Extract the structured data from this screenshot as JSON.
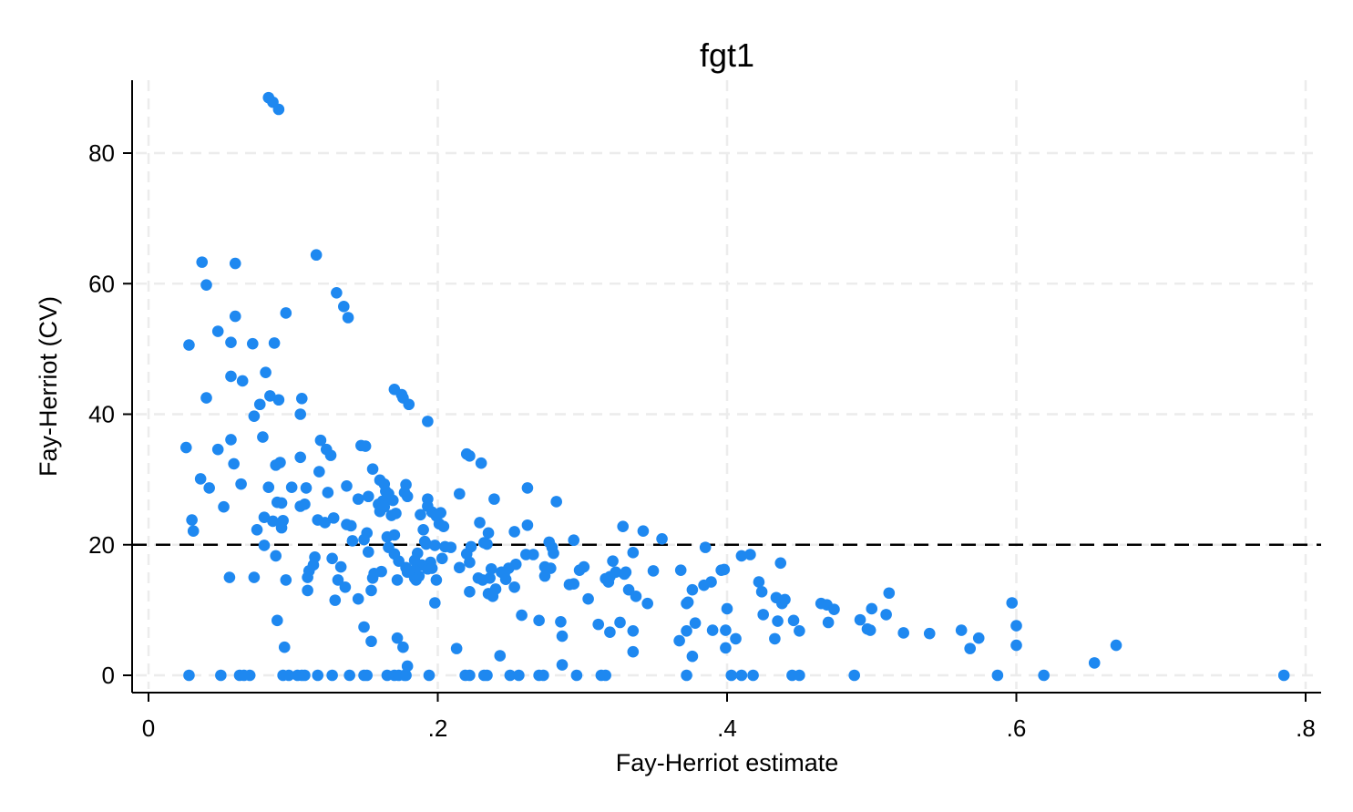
{
  "chart_data": {
    "type": "scatter",
    "title": "fgt1",
    "xlabel": "Fay-Herriot estimate",
    "ylabel": "Fay-Herriot (CV)",
    "xlim": [
      0,
      0.8
    ],
    "ylim": [
      0,
      90
    ],
    "x_ticks": [
      {
        "value": 0,
        "label": "0"
      },
      {
        "value": 0.2,
        "label": ".2"
      },
      {
        "value": 0.4,
        "label": ".4"
      },
      {
        "value": 0.6,
        "label": ".6"
      },
      {
        "value": 0.8,
        "label": ".8"
      }
    ],
    "y_ticks": [
      {
        "value": 0,
        "label": "0"
      },
      {
        "value": 20,
        "label": "20"
      },
      {
        "value": 40,
        "label": "40"
      },
      {
        "value": 60,
        "label": "60"
      },
      {
        "value": 80,
        "label": "80"
      }
    ],
    "grid": true,
    "reference_line": {
      "y": 20,
      "style": "dashed"
    },
    "colors": {
      "points": "#1e88f0",
      "grid": "#ececec",
      "reference": "#000000"
    },
    "points": [
      [
        0.028,
        0
      ],
      [
        0.05,
        0
      ],
      [
        0.063,
        0
      ],
      [
        0.066,
        0
      ],
      [
        0.07,
        0
      ],
      [
        0.093,
        0
      ],
      [
        0.097,
        0
      ],
      [
        0.103,
        0
      ],
      [
        0.106,
        0
      ],
      [
        0.108,
        0
      ],
      [
        0.117,
        0
      ],
      [
        0.127,
        0
      ],
      [
        0.139,
        0
      ],
      [
        0.149,
        0
      ],
      [
        0.151,
        0
      ],
      [
        0.165,
        0
      ],
      [
        0.17,
        0
      ],
      [
        0.173,
        0
      ],
      [
        0.177,
        0
      ],
      [
        0.178,
        0
      ],
      [
        0.194,
        0
      ],
      [
        0.219,
        0
      ],
      [
        0.222,
        0
      ],
      [
        0.232,
        0
      ],
      [
        0.234,
        0
      ],
      [
        0.25,
        0
      ],
      [
        0.256,
        0
      ],
      [
        0.27,
        0
      ],
      [
        0.273,
        0
      ],
      [
        0.296,
        0
      ],
      [
        0.313,
        0
      ],
      [
        0.316,
        0
      ],
      [
        0.372,
        0
      ],
      [
        0.403,
        0
      ],
      [
        0.41,
        0
      ],
      [
        0.418,
        0
      ],
      [
        0.445,
        0
      ],
      [
        0.45,
        0
      ],
      [
        0.488,
        0
      ],
      [
        0.587,
        0
      ],
      [
        0.619,
        0
      ],
      [
        0.785,
        0
      ],
      [
        0.083,
        88.5
      ],
      [
        0.086,
        87.8
      ],
      [
        0.09,
        86.7
      ],
      [
        0.116,
        64.4
      ],
      [
        0.037,
        63.3
      ],
      [
        0.06,
        63.1
      ],
      [
        0.04,
        59.8
      ],
      [
        0.13,
        58.6
      ],
      [
        0.135,
        56.5
      ],
      [
        0.138,
        54.8
      ],
      [
        0.095,
        55.5
      ],
      [
        0.06,
        55
      ],
      [
        0.048,
        52.7
      ],
      [
        0.028,
        50.6
      ],
      [
        0.057,
        51
      ],
      [
        0.072,
        50.8
      ],
      [
        0.087,
        50.9
      ],
      [
        0.081,
        46.4
      ],
      [
        0.057,
        45.8
      ],
      [
        0.065,
        45.1
      ],
      [
        0.17,
        43.8
      ],
      [
        0.175,
        43
      ],
      [
        0.176,
        42.5
      ],
      [
        0.04,
        42.5
      ],
      [
        0.084,
        42.8
      ],
      [
        0.09,
        42.2
      ],
      [
        0.106,
        42.4
      ],
      [
        0.18,
        41.5
      ],
      [
        0.077,
        41.5
      ],
      [
        0.073,
        39.7
      ],
      [
        0.105,
        40
      ],
      [
        0.193,
        38.9
      ],
      [
        0.079,
        36.5
      ],
      [
        0.057,
        36.1
      ],
      [
        0.119,
        36
      ],
      [
        0.026,
        34.9
      ],
      [
        0.048,
        34.6
      ],
      [
        0.147,
        35.2
      ],
      [
        0.15,
        35.1
      ],
      [
        0.123,
        34.6
      ],
      [
        0.105,
        33.4
      ],
      [
        0.126,
        33.7
      ],
      [
        0.22,
        33.9
      ],
      [
        0.222,
        33.6
      ],
      [
        0.059,
        32.4
      ],
      [
        0.091,
        32.6
      ],
      [
        0.088,
        32.2
      ],
      [
        0.23,
        32.5
      ],
      [
        0.118,
        31.2
      ],
      [
        0.155,
        31.6
      ],
      [
        0.036,
        30.1
      ],
      [
        0.064,
        29.3
      ],
      [
        0.16,
        29.9
      ],
      [
        0.163,
        29.3
      ],
      [
        0.042,
        28.7
      ],
      [
        0.083,
        28.8
      ],
      [
        0.099,
        28.8
      ],
      [
        0.109,
        28.7
      ],
      [
        0.137,
        29
      ],
      [
        0.178,
        29.2
      ],
      [
        0.262,
        28.7
      ],
      [
        0.124,
        28
      ],
      [
        0.164,
        28.2
      ],
      [
        0.166,
        27.8
      ],
      [
        0.177,
        28
      ],
      [
        0.179,
        27.4
      ],
      [
        0.215,
        27.8
      ],
      [
        0.145,
        27
      ],
      [
        0.152,
        27.4
      ],
      [
        0.162,
        26.7
      ],
      [
        0.169,
        26.8
      ],
      [
        0.193,
        27
      ],
      [
        0.239,
        27
      ],
      [
        0.282,
        26.6
      ],
      [
        0.089,
        26.5
      ],
      [
        0.092,
        26.4
      ],
      [
        0.105,
        25.9
      ],
      [
        0.108,
        26.2
      ],
      [
        0.159,
        26.2
      ],
      [
        0.163,
        25.8
      ],
      [
        0.193,
        25.9
      ],
      [
        0.052,
        25.8
      ],
      [
        0.16,
        25.1
      ],
      [
        0.171,
        24.8
      ],
      [
        0.188,
        24.6
      ],
      [
        0.196,
        25
      ],
      [
        0.202,
        24.9
      ],
      [
        0.03,
        23.8
      ],
      [
        0.08,
        24.2
      ],
      [
        0.086,
        23.6
      ],
      [
        0.093,
        23.7
      ],
      [
        0.117,
        23.8
      ],
      [
        0.122,
        23.4
      ],
      [
        0.128,
        24.1
      ],
      [
        0.137,
        23.1
      ],
      [
        0.14,
        22.9
      ],
      [
        0.168,
        24.5
      ],
      [
        0.199,
        24.4
      ],
      [
        0.201,
        23.2
      ],
      [
        0.229,
        23.4
      ],
      [
        0.262,
        23
      ],
      [
        0.328,
        22.8
      ],
      [
        0.031,
        22.1
      ],
      [
        0.075,
        22.3
      ],
      [
        0.092,
        22.6
      ],
      [
        0.151,
        21.8
      ],
      [
        0.19,
        22.3
      ],
      [
        0.204,
        22.8
      ],
      [
        0.235,
        21.8
      ],
      [
        0.253,
        22
      ],
      [
        0.342,
        22.1
      ],
      [
        0.149,
        20.8
      ],
      [
        0.165,
        21.2
      ],
      [
        0.17,
        21.5
      ],
      [
        0.191,
        20.5
      ],
      [
        0.232,
        20.3
      ],
      [
        0.277,
        20.4
      ],
      [
        0.294,
        20.7
      ],
      [
        0.355,
        20.9
      ],
      [
        0.385,
        19.6
      ],
      [
        0.08,
        19.9
      ],
      [
        0.141,
        20.6
      ],
      [
        0.166,
        19.6
      ],
      [
        0.192,
        20.1
      ],
      [
        0.198,
        19.9
      ],
      [
        0.205,
        19.7
      ],
      [
        0.209,
        19.6
      ],
      [
        0.223,
        19.7
      ],
      [
        0.234,
        20.1
      ],
      [
        0.279,
        19.6
      ],
      [
        0.152,
        18.9
      ],
      [
        0.17,
        18.6
      ],
      [
        0.186,
        18.7
      ],
      [
        0.203,
        17.9
      ],
      [
        0.22,
        18.6
      ],
      [
        0.261,
        18.5
      ],
      [
        0.266,
        18.5
      ],
      [
        0.28,
        18.7
      ],
      [
        0.335,
        18.8
      ],
      [
        0.088,
        18.3
      ],
      [
        0.115,
        18.1
      ],
      [
        0.127,
        17.9
      ],
      [
        0.173,
        17.5
      ],
      [
        0.184,
        17.6
      ],
      [
        0.195,
        17.3
      ],
      [
        0.321,
        17.5
      ],
      [
        0.41,
        18.3
      ],
      [
        0.416,
        18.5
      ],
      [
        0.437,
        17.2
      ],
      [
        0.114,
        16.9
      ],
      [
        0.133,
        16.6
      ],
      [
        0.178,
        16.5
      ],
      [
        0.189,
        16.9
      ],
      [
        0.222,
        17.3
      ],
      [
        0.254,
        17
      ],
      [
        0.274,
        16.6
      ],
      [
        0.111,
        16
      ],
      [
        0.184,
        16.1
      ],
      [
        0.193,
        16.3
      ],
      [
        0.196,
        16.4
      ],
      [
        0.215,
        16.5
      ],
      [
        0.237,
        16.3
      ],
      [
        0.244,
        15.8
      ],
      [
        0.249,
        16.4
      ],
      [
        0.278,
        16.4
      ],
      [
        0.298,
        16.1
      ],
      [
        0.301,
        16.6
      ],
      [
        0.33,
        15.8
      ],
      [
        0.349,
        16
      ],
      [
        0.368,
        16.1
      ],
      [
        0.396,
        16.1
      ],
      [
        0.398,
        16.2
      ],
      [
        0.156,
        15.6
      ],
      [
        0.161,
        15.9
      ],
      [
        0.179,
        15.8
      ],
      [
        0.184,
        14.9
      ],
      [
        0.187,
        15.2
      ],
      [
        0.236,
        14.9
      ],
      [
        0.246,
        15.5
      ],
      [
        0.274,
        15.2
      ],
      [
        0.319,
        15.1
      ],
      [
        0.323,
        15.8
      ],
      [
        0.329,
        15.5
      ],
      [
        0.056,
        15
      ],
      [
        0.073,
        15
      ],
      [
        0.095,
        14.6
      ],
      [
        0.11,
        15
      ],
      [
        0.131,
        14.6
      ],
      [
        0.155,
        14.9
      ],
      [
        0.172,
        14.6
      ],
      [
        0.185,
        14.6
      ],
      [
        0.199,
        14.6
      ],
      [
        0.228,
        14.9
      ],
      [
        0.231,
        14.6
      ],
      [
        0.247,
        14.7
      ],
      [
        0.316,
        14.8
      ],
      [
        0.318,
        14.3
      ],
      [
        0.253,
        13.5
      ],
      [
        0.291,
        13.9
      ],
      [
        0.294,
        14
      ],
      [
        0.389,
        14.3
      ],
      [
        0.422,
        14.3
      ],
      [
        0.11,
        13
      ],
      [
        0.136,
        13.5
      ],
      [
        0.154,
        13
      ],
      [
        0.222,
        12.8
      ],
      [
        0.235,
        12.5
      ],
      [
        0.24,
        13.2
      ],
      [
        0.332,
        13.1
      ],
      [
        0.376,
        13.1
      ],
      [
        0.384,
        13.8
      ],
      [
        0.424,
        12.8
      ],
      [
        0.512,
        12.6
      ],
      [
        0.129,
        11.5
      ],
      [
        0.145,
        11.7
      ],
      [
        0.198,
        11.1
      ],
      [
        0.238,
        12.1
      ],
      [
        0.304,
        11.7
      ],
      [
        0.337,
        12.1
      ],
      [
        0.345,
        11
      ],
      [
        0.372,
        11
      ],
      [
        0.373,
        11.2
      ],
      [
        0.434,
        11.9
      ],
      [
        0.438,
        11
      ],
      [
        0.44,
        11.6
      ],
      [
        0.465,
        11
      ],
      [
        0.469,
        10.8
      ],
      [
        0.474,
        10.1
      ],
      [
        0.5,
        10.2
      ],
      [
        0.597,
        11.1
      ],
      [
        0.4,
        10.2
      ],
      [
        0.425,
        9.3
      ],
      [
        0.51,
        9.3
      ],
      [
        0.258,
        9.2
      ],
      [
        0.089,
        8.4
      ],
      [
        0.27,
        8.4
      ],
      [
        0.285,
        8.2
      ],
      [
        0.311,
        7.8
      ],
      [
        0.326,
        8.1
      ],
      [
        0.378,
        8
      ],
      [
        0.435,
        8.3
      ],
      [
        0.446,
        8.4
      ],
      [
        0.47,
        8.1
      ],
      [
        0.492,
        8.5
      ],
      [
        0.149,
        7.4
      ],
      [
        0.319,
        6.6
      ],
      [
        0.335,
        6.8
      ],
      [
        0.372,
        6.8
      ],
      [
        0.39,
        6.9
      ],
      [
        0.399,
        6.9
      ],
      [
        0.45,
        6.8
      ],
      [
        0.497,
        7.1
      ],
      [
        0.499,
        6.9
      ],
      [
        0.522,
        6.5
      ],
      [
        0.54,
        6.4
      ],
      [
        0.562,
        6.9
      ],
      [
        0.6,
        7.6
      ],
      [
        0.172,
        5.7
      ],
      [
        0.286,
        6
      ],
      [
        0.367,
        5.3
      ],
      [
        0.433,
        5.6
      ],
      [
        0.154,
        5.2
      ],
      [
        0.406,
        5.6
      ],
      [
        0.574,
        5.7
      ],
      [
        0.568,
        4.1
      ],
      [
        0.6,
        4.6
      ],
      [
        0.669,
        4.6
      ],
      [
        0.094,
        4.3
      ],
      [
        0.176,
        4.3
      ],
      [
        0.213,
        4.1
      ],
      [
        0.335,
        3.6
      ],
      [
        0.399,
        4.2
      ],
      [
        0.243,
        3
      ],
      [
        0.376,
        2.9
      ],
      [
        0.286,
        1.6
      ],
      [
        0.179,
        1.4
      ],
      [
        0.654,
        1.9
      ]
    ]
  }
}
